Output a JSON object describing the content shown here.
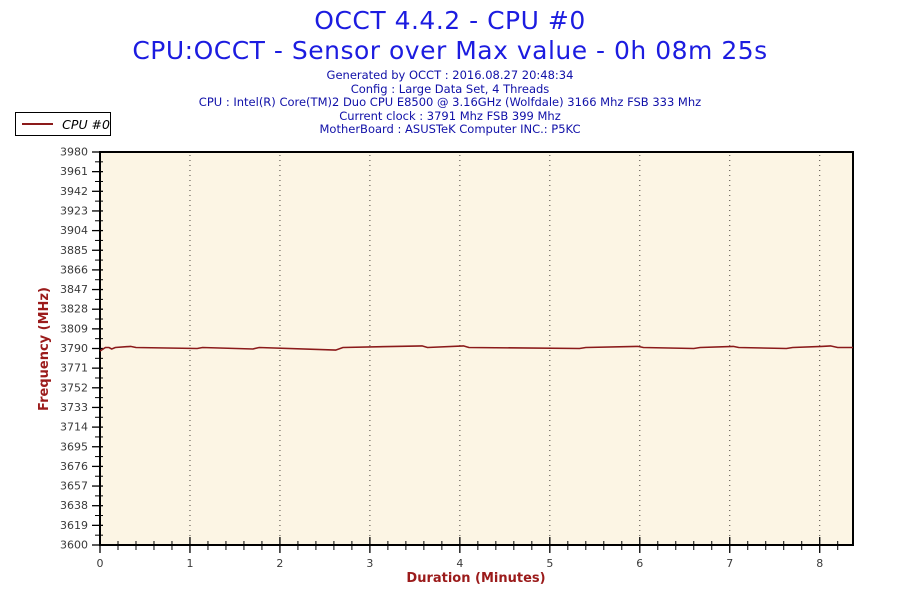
{
  "info": {
    "lines": [
      "Generated by OCCT : 2016.08.27 20:48:34",
      "Config : Large Data Set, 4 Threads",
      "CPU : Intel(R) Core(TM)2 Duo CPU E8500 @ 3.16GHz (Wolfdale) 3166 Mhz FSB 333 Mhz",
      "Current clock : 3791 Mhz FSB 399 Mhz",
      "MotherBoard : ASUSTeK Computer INC.: P5KC"
    ]
  },
  "colors": {
    "title_blue": "#1c1ce0",
    "info_navy": "#1010a8",
    "axis_label_red": "#9b1b1b",
    "series_red": "#8b1a1a",
    "plot_bg": "#fcf5e4",
    "gridline": "#4a443c",
    "tick_text": "#3a3a3a",
    "frame_black": "#000000"
  },
  "chart_data": {
    "type": "line",
    "title": "OCCT 4.4.2 - CPU #0",
    "subtitle": "CPU:OCCT - Sensor over Max value - 0h 08m 25s",
    "xlabel": "Duration (Minutes)",
    "ylabel": "Frequency (MHz)",
    "xlim": [
      0,
      8.37
    ],
    "ylim": [
      3600,
      3980
    ],
    "x_ticks": [
      0,
      1,
      2,
      3,
      4,
      5,
      6,
      7,
      8
    ],
    "x_minor_step": 0.2,
    "x_gridlines": [
      1,
      2,
      3,
      4,
      5,
      6,
      7,
      8
    ],
    "y_ticks": [
      3980,
      3961,
      3942,
      3923,
      3904,
      3885,
      3866,
      3847,
      3828,
      3809,
      3790,
      3771,
      3752,
      3733,
      3714,
      3695,
      3676,
      3657,
      3638,
      3619,
      3600
    ],
    "y_major_step": 19,
    "y_minor_step": 9.5,
    "grid": "vertical-dotted",
    "legend_position": "top-left",
    "series": [
      {
        "name": "CPU #0",
        "color": "#8b1a1a",
        "nominal_value_mhz": 3791,
        "points": [
          [
            0,
            3787.5
          ],
          [
            0.06,
            3791
          ],
          [
            0.1,
            3791
          ],
          [
            0.13,
            3789.5
          ],
          [
            0.17,
            3791
          ],
          [
            0.34,
            3792
          ],
          [
            0.4,
            3791
          ],
          [
            1.08,
            3790
          ],
          [
            1.14,
            3791
          ],
          [
            1.7,
            3789.5
          ],
          [
            1.77,
            3791
          ],
          [
            2.62,
            3788.5
          ],
          [
            2.7,
            3791
          ],
          [
            3.58,
            3792.5
          ],
          [
            3.64,
            3791
          ],
          [
            4.04,
            3792.5
          ],
          [
            4.1,
            3791
          ],
          [
            5.33,
            3790
          ],
          [
            5.4,
            3791
          ],
          [
            5.98,
            3792
          ],
          [
            6.04,
            3791
          ],
          [
            6.6,
            3790
          ],
          [
            6.67,
            3791
          ],
          [
            7.04,
            3792
          ],
          [
            7.1,
            3791
          ],
          [
            7.63,
            3790
          ],
          [
            7.7,
            3791
          ],
          [
            8.02,
            3792
          ],
          [
            8.12,
            3792.5
          ],
          [
            8.2,
            3791
          ],
          [
            8.37,
            3791
          ]
        ]
      }
    ]
  }
}
